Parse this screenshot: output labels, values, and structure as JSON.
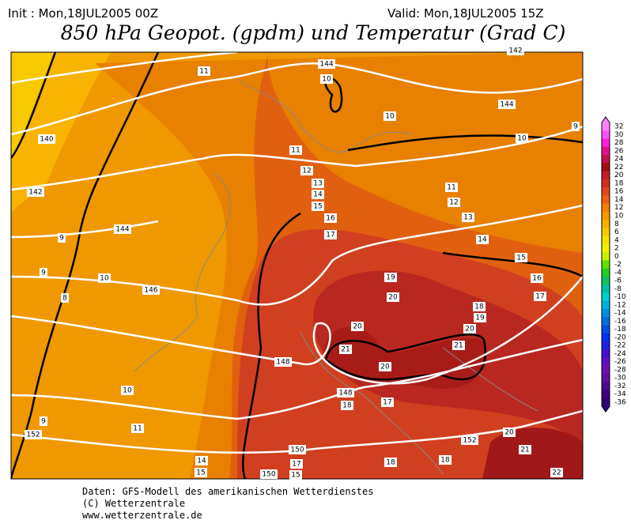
{
  "header": {
    "init": "Init : Mon,18JUL2005 00Z",
    "valid": "Valid: Mon,18JUL2005 15Z",
    "title": "850 hPa Geopot. (gpdm) und Temperatur (Grad C)"
  },
  "colorbar": {
    "levels": [
      32,
      30,
      28,
      26,
      24,
      22,
      20,
      18,
      16,
      14,
      12,
      10,
      8,
      6,
      4,
      2,
      0,
      -2,
      -4,
      -6,
      -8,
      -10,
      -12,
      -14,
      -16,
      -18,
      -20,
      -22,
      -24,
      -26,
      -28,
      -30,
      -32,
      -34,
      -36
    ]
  },
  "map_labels": [
    "11",
    "144",
    "10",
    "10",
    "144",
    "142",
    "9",
    "10",
    "140",
    "11",
    "12",
    "13",
    "14",
    "15",
    "16",
    "17",
    "11",
    "12",
    "13",
    "14",
    "15",
    "16",
    "17",
    "142",
    "144",
    "9",
    "9",
    "10",
    "146",
    "8",
    "19",
    "20",
    "18",
    "19",
    "20",
    "20",
    "21",
    "21",
    "148",
    "20",
    "148",
    "18",
    "17",
    "10",
    "9",
    "11",
    "152",
    "150",
    "152",
    "20",
    "21",
    "14",
    "15",
    "17",
    "18",
    "18",
    "150",
    "15",
    "22"
  ],
  "footer": [
    "Daten: GFS-Modell des amerikanischen Wetterdienstes",
    "(C) Wetterzentrale",
    "www.wetterzentrale.de"
  ]
}
